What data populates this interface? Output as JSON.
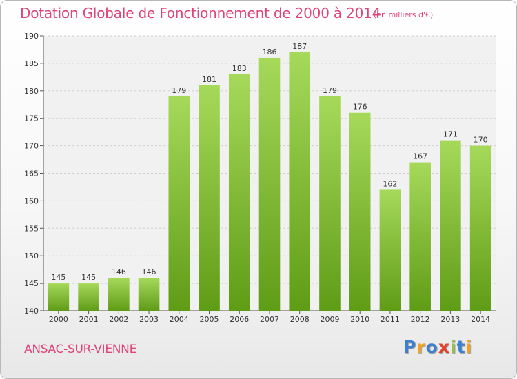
{
  "chart_data": {
    "type": "bar",
    "title": "Dotation Globale de Fonctionnement de 2000 à 2014",
    "subtitle": "(en milliers d'€)",
    "categories": [
      "2000",
      "2001",
      "2002",
      "2003",
      "2004",
      "2005",
      "2006",
      "2007",
      "2008",
      "2009",
      "2010",
      "2011",
      "2012",
      "2013",
      "2014"
    ],
    "values": [
      145,
      145,
      146,
      146,
      179,
      181,
      183,
      186,
      187,
      179,
      176,
      162,
      167,
      171,
      170
    ],
    "data_labels": [
      "145",
      "145",
      "146",
      "146",
      "179",
      "181",
      "183",
      "186",
      "187",
      "179",
      "176",
      "162",
      "167",
      "171",
      "170"
    ],
    "xlabel": "",
    "ylabel": "",
    "ylim": [
      140,
      190
    ],
    "yticks": [
      140,
      145,
      150,
      155,
      160,
      165,
      170,
      175,
      180,
      185,
      190
    ],
    "grid": true,
    "colors": {
      "bar_top": "#a6d95a",
      "bar_bottom": "#5f9c16",
      "title": "#e0457a"
    }
  },
  "footer": {
    "town": "ANSAC-SUR-VIENNE",
    "logo_letters": [
      {
        "ch": "P",
        "color": "#3a7fd0"
      },
      {
        "ch": "r",
        "color": "#f2a31b"
      },
      {
        "ch": "o",
        "color": "#3a7fd0"
      },
      {
        "ch": "x",
        "color": "#e5402a"
      },
      {
        "ch": "i",
        "color": "#8cc63e"
      },
      {
        "ch": "t",
        "color": "#3a7fd0"
      },
      {
        "ch": "i",
        "color": "#f2a31b"
      }
    ]
  }
}
